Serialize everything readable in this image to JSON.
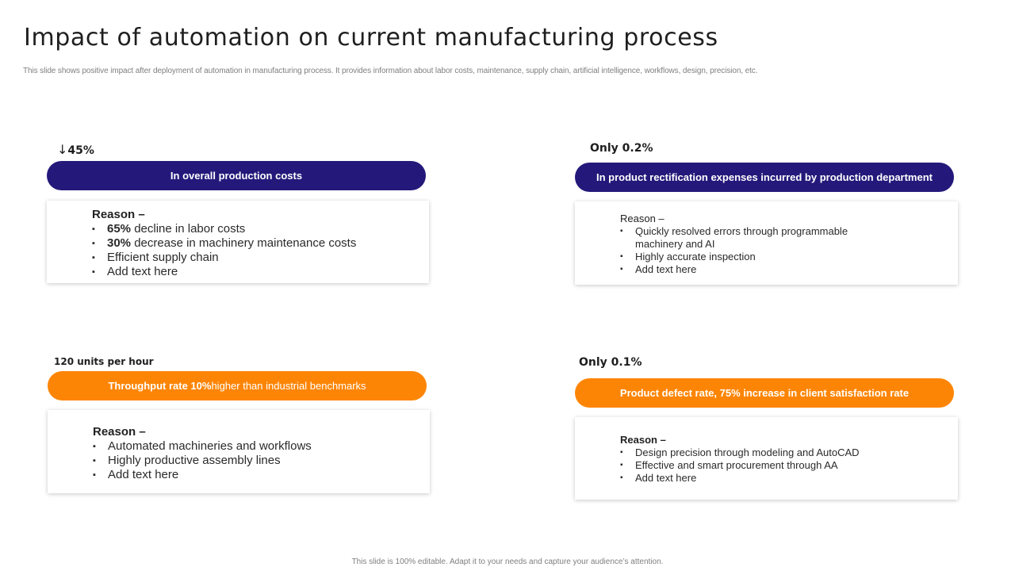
{
  "slide": {
    "title": "Impact of automation on current manufacturing process",
    "subtitle": "This slide shows positive impact after deployment of automation in manufacturing process. It provides information about labor costs, maintenance, supply chain, artificial intelligence,  workflows, design, precision, etc.",
    "footer": "This slide is 100% editable.  Adapt it to your needs and capture your audience’s attention."
  },
  "colors": {
    "navy": "#24197a",
    "orange": "#fd8505"
  },
  "panels": [
    {
      "stat_arrow": "↓",
      "stat_value": "45%",
      "pill_text": "In overall production costs",
      "reason_label": "Reason –",
      "items": [
        {
          "bold": "65%",
          "text": " decline in labor costs"
        },
        {
          "bold": "30%",
          "text": " decrease in machinery maintenance costs"
        },
        {
          "bold": "",
          "text": "Efficient supply chain"
        },
        {
          "bold": "",
          "text": "Add text here"
        }
      ]
    },
    {
      "stat": "Only 0.2%",
      "pill_text": "In product rectification expenses incurred by production department",
      "reason_label": "Reason –",
      "items": [
        "Quickly resolved  errors through programmable machinery and AI",
        "Highly accurate inspection",
        "Add text here"
      ]
    },
    {
      "stat": "120 units per hour",
      "pill_bold": "Throughput  rate 10%",
      "pill_text": " higher than industrial benchmarks",
      "reason_label": "Reason –",
      "items": [
        "Automated machineries and workflows",
        "Highly productive assembly lines",
        "Add text here"
      ]
    },
    {
      "stat": "Only 0.1%",
      "pill_text": "Product defect rate, 75%  increase in client satisfaction  rate",
      "reason_label": "Reason –",
      "items": [
        "Design  precision  through  modeling  and AutoCAD",
        "Effective  and  smart procurement  through  AA",
        "Add text here"
      ]
    }
  ]
}
